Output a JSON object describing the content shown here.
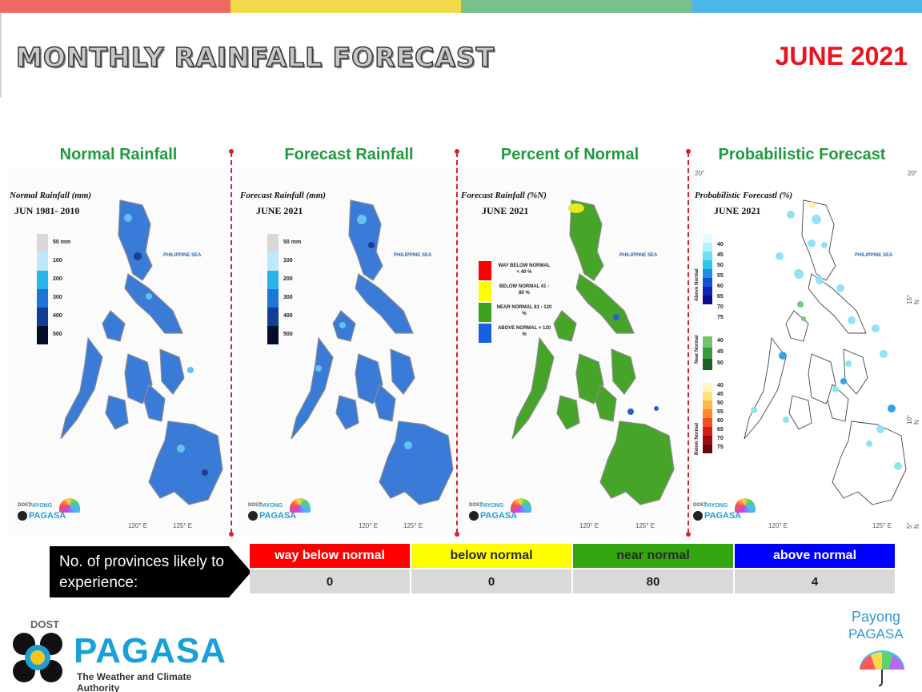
{
  "header": {
    "title": "MONTHLY RAINFALL FORECAST",
    "month": "JUNE 2021",
    "bar_colors": [
      "#ef6a64",
      "#f2d94a",
      "#79c08b",
      "#4db6e8"
    ]
  },
  "panels": [
    {
      "title": "Normal Rainfall",
      "caption": "Normal Rainfall (mm)",
      "sub": "JUN 1981- 2010",
      "sea": "PHILIPPINE SEA",
      "legend": [
        "50 mm",
        "100",
        "200",
        "300",
        "400",
        "500"
      ]
    },
    {
      "title": "Forecast Rainfall",
      "caption": "Forecast Rainfall (mm)",
      "sub": "JUNE 2021",
      "sea": "PHILIPPINE SEA",
      "legend": [
        "50 mm",
        "100",
        "200",
        "300",
        "400",
        "500"
      ]
    },
    {
      "title": "Percent of Normal",
      "caption": "Forecast Rainfall (%N)",
      "sub": "JUNE 2021",
      "sea": "PHILIPPINE SEA",
      "legend": [
        {
          "label": "WAY BELOW NORMAL < 40 %",
          "color": "#ff0000"
        },
        {
          "label": "BELOW NORMAL 41 - 80 %",
          "color": "#ffff00"
        },
        {
          "label": "NEAR NORMAL 81 - 120 %",
          "color": "#3fa21c"
        },
        {
          "label": "ABOVE NORMAL > 120 %",
          "color": "#1560e0"
        }
      ]
    },
    {
      "title": "Probabilistic Forecast",
      "caption": "Probabilistic Forecastl (%)",
      "sub": "JUNE 2021",
      "sea": "PHILIPPINE SEA",
      "categories": [
        "Above Normal",
        "Near Normal",
        "Below Normal"
      ],
      "above": [
        "40",
        "45",
        "50",
        "55",
        "60",
        "65",
        "70",
        "75"
      ],
      "near": [
        "40",
        "45",
        "50"
      ],
      "below": [
        "40",
        "45",
        "50",
        "55",
        "60",
        "65",
        "70",
        "75"
      ]
    }
  ],
  "map_axes": {
    "lon_left": "120° E",
    "lon_right": "125° E",
    "lat_20": "20°",
    "lat_15": "15° N",
    "lat_10": "10° N",
    "lat_5": "5° N"
  },
  "mini_logo": {
    "dost": "DOST",
    "payong": "PAYONG",
    "pagasa": "PAGASA"
  },
  "summary": {
    "label": "No. of provinces likely to experience:",
    "headers": [
      {
        "label": "way below normal",
        "bg": "#ff0000",
        "fg": "#ffffff"
      },
      {
        "label": "below normal",
        "bg": "#ffff00",
        "fg": "#2a2a2a"
      },
      {
        "label": "near normal",
        "bg": "#33a50f",
        "fg": "#2a2a2a"
      },
      {
        "label": "above normal",
        "bg": "#0000ff",
        "fg": "#ffffff"
      }
    ],
    "values": [
      "0",
      "0",
      "80",
      "4"
    ]
  },
  "footer": {
    "dost": "DOST",
    "pagasa": "PAGASA",
    "tagline": "The Weather and Climate Authority",
    "payong_line1": "Payong",
    "payong_line2": "PAGASA"
  }
}
